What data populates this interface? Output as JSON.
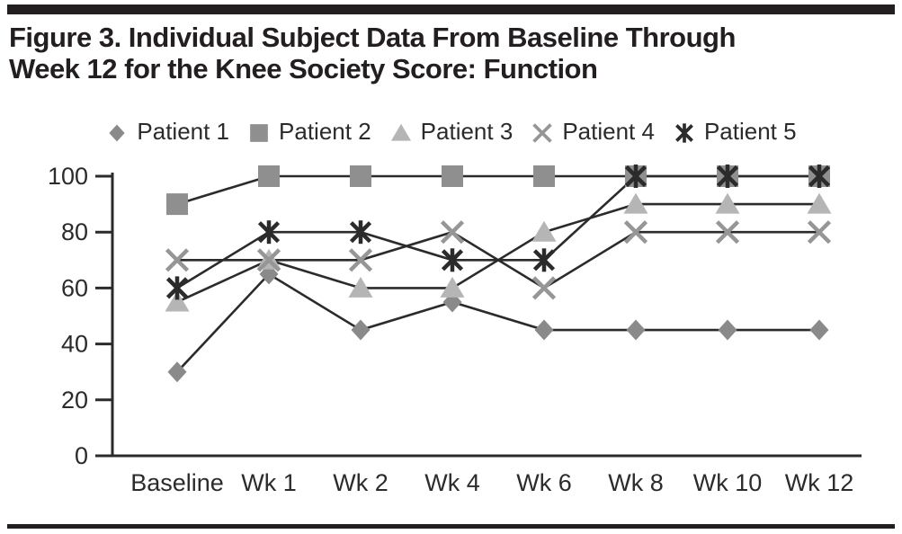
{
  "title": {
    "line1": "Figure 3. Individual Subject Data From Baseline Through",
    "line2": "Week 12 for the Knee Society Score: Function"
  },
  "chart_data": {
    "type": "line",
    "title": "Knee Society Score: Function — Individual Subject Data",
    "categories": [
      "Baseline",
      "Wk 1",
      "Wk 2",
      "Wk 4",
      "Wk 6",
      "Wk 8",
      "Wk 10",
      "Wk 12"
    ],
    "series": [
      {
        "name": "Patient 1",
        "marker": "diamond",
        "color": "#8a8a8a",
        "values": [
          30,
          65,
          45,
          55,
          45,
          45,
          45,
          45
        ]
      },
      {
        "name": "Patient 2",
        "marker": "square",
        "color": "#8f8f8f",
        "values": [
          90,
          100,
          100,
          100,
          100,
          100,
          100,
          100
        ]
      },
      {
        "name": "Patient 3",
        "marker": "triangle",
        "color": "#b5b5b5",
        "values": [
          55,
          70,
          60,
          60,
          80,
          90,
          90,
          90
        ]
      },
      {
        "name": "Patient 4",
        "marker": "x",
        "color": "#969696",
        "values": [
          70,
          70,
          70,
          80,
          60,
          80,
          80,
          80
        ]
      },
      {
        "name": "Patient 5",
        "marker": "asterisk",
        "color": "#2b2b2b",
        "values": [
          60,
          80,
          80,
          70,
          70,
          100,
          100,
          100
        ]
      }
    ],
    "xlabel": "",
    "ylabel": "",
    "ylim": [
      0,
      100
    ],
    "y_ticks": [
      0,
      20,
      40,
      60,
      80,
      100
    ],
    "grid": false,
    "legend_position": "top",
    "line_color": "#2b2b2b",
    "axis_color": "#2b2b2b",
    "text_color": "#2b2b2b"
  }
}
